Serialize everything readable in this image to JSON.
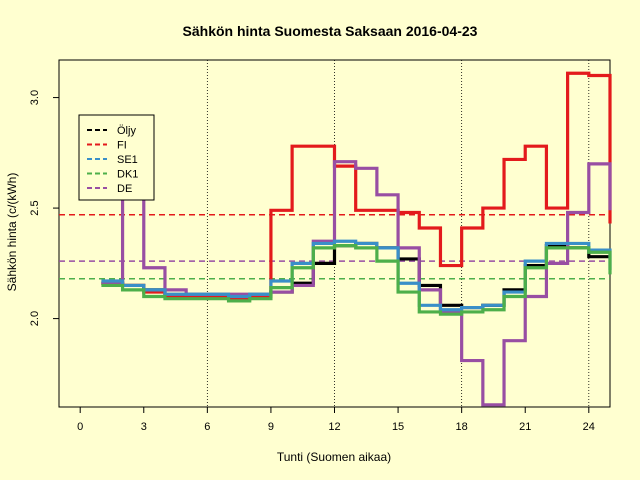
{
  "chart_data": {
    "type": "line",
    "title": "Sähkön hinta Suomesta Saksaan 2016-04-23",
    "xlabel": "Tunti (Suomen aikaa)",
    "ylabel": "Sähkön hinta (c/(kWh)",
    "xlim": [
      -1,
      25
    ],
    "ylim": [
      1.6,
      3.17
    ],
    "x_ticks": [
      "0",
      "3",
      "6",
      "9",
      "12",
      "15",
      "18",
      "21",
      "24"
    ],
    "y_ticks": [
      "2.0",
      "2.5",
      "3.0"
    ],
    "vlines": [
      6,
      12,
      18,
      24
    ],
    "legend_position": "top-left",
    "series": [
      {
        "name": "Öljy",
        "color": "#000000",
        "x": [
          1,
          2,
          3,
          4,
          5,
          6,
          7,
          8,
          9,
          10,
          11,
          12,
          13,
          14,
          15,
          16,
          17,
          18,
          19,
          20,
          21,
          22,
          23,
          24
        ],
        "values": [
          2.16,
          2.15,
          2.13,
          2.1,
          2.1,
          2.1,
          2.09,
          2.1,
          2.12,
          2.16,
          2.25,
          2.33,
          2.34,
          2.32,
          2.27,
          2.15,
          2.06,
          2.05,
          2.06,
          2.13,
          2.24,
          2.33,
          2.32,
          2.28
        ],
        "ref": null
      },
      {
        "name": "FI",
        "color": "#e31a1c",
        "x": [
          1,
          2,
          3,
          4,
          5,
          6,
          7,
          8,
          9,
          10,
          11,
          12,
          13,
          14,
          15,
          16,
          17,
          18,
          19,
          20,
          21,
          22,
          23,
          24
        ],
        "values": [
          2.16,
          2.15,
          2.12,
          2.1,
          2.1,
          2.1,
          2.09,
          2.1,
          2.49,
          2.78,
          2.78,
          2.69,
          2.49,
          2.49,
          2.48,
          2.41,
          2.24,
          2.41,
          2.5,
          2.72,
          2.78,
          2.5,
          3.11,
          3.1
        ],
        "ref": 2.47,
        "last_y": 2.43
      },
      {
        "name": "SE1",
        "color": "#3a8fc8",
        "x": [
          1,
          2,
          3,
          4,
          5,
          6,
          7,
          8,
          9,
          10,
          11,
          12,
          13,
          14,
          15,
          16,
          17,
          18,
          19,
          20,
          21,
          22,
          23,
          24
        ],
        "values": [
          2.17,
          2.15,
          2.13,
          2.11,
          2.11,
          2.11,
          2.1,
          2.11,
          2.17,
          2.25,
          2.34,
          2.35,
          2.34,
          2.32,
          2.16,
          2.06,
          2.04,
          2.05,
          2.06,
          2.12,
          2.26,
          2.34,
          2.34,
          2.31
        ],
        "ref": null,
        "last_y": 2.22
      },
      {
        "name": "DK1",
        "color": "#4daf4a",
        "x": [
          1,
          2,
          3,
          4,
          5,
          6,
          7,
          8,
          9,
          10,
          11,
          12,
          13,
          14,
          15,
          16,
          17,
          18,
          19,
          20,
          21,
          22,
          23,
          24
        ],
        "values": [
          2.15,
          2.13,
          2.1,
          2.09,
          2.09,
          2.09,
          2.08,
          2.09,
          2.14,
          2.23,
          2.32,
          2.33,
          2.32,
          2.26,
          2.12,
          2.03,
          2.02,
          2.03,
          2.04,
          2.1,
          2.23,
          2.32,
          2.32,
          2.3
        ],
        "ref": 2.18,
        "last_y": 2.2
      },
      {
        "name": "DE",
        "color": "#984ea3",
        "x": [
          1,
          2,
          3,
          4,
          5,
          6,
          7,
          8,
          9,
          10,
          11,
          12,
          13,
          14,
          15,
          16,
          17,
          18,
          19,
          20,
          21,
          22,
          23,
          24
        ],
        "values": [
          2.16,
          2.55,
          2.23,
          2.13,
          2.11,
          2.11,
          2.11,
          2.11,
          2.12,
          2.15,
          2.35,
          2.71,
          2.68,
          2.56,
          2.32,
          2.13,
          2.03,
          1.81,
          1.61,
          1.9,
          2.1,
          2.25,
          2.48,
          2.7
        ],
        "ref": 2.26,
        "last_y": 2.49
      }
    ]
  }
}
